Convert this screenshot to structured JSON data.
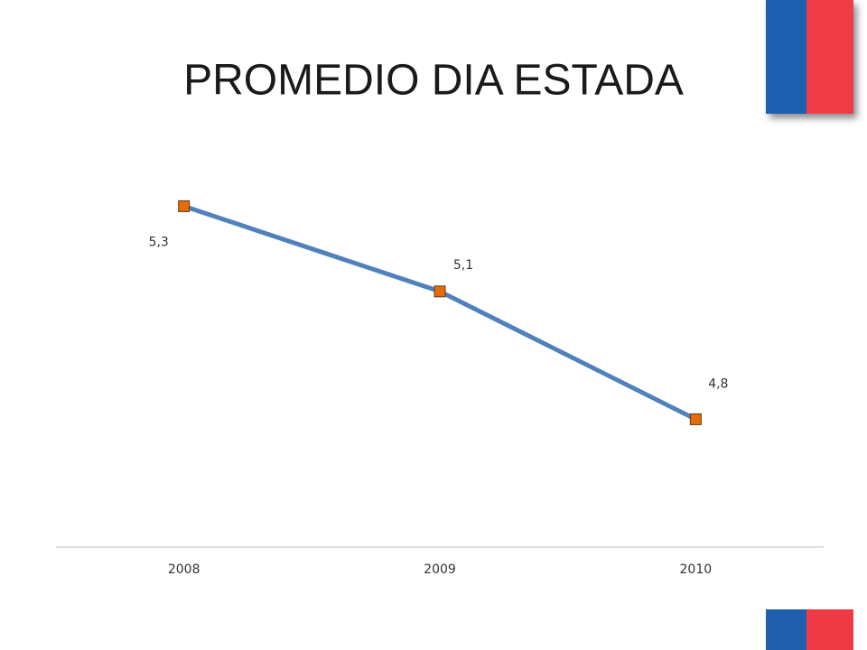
{
  "chart_data": {
    "type": "line",
    "title": "PROMEDIO DIA ESTADA",
    "categories": [
      "2008",
      "2009",
      "2010"
    ],
    "series": [
      {
        "name": "Promedio dia estada",
        "color": "#4f81bd",
        "marker_color": "#e46c0a",
        "values": [
          5.3,
          5.1,
          4.8
        ],
        "value_labels": [
          "5,3",
          "5,1",
          "4,8"
        ]
      }
    ],
    "ylim": [
      4.5,
      5.5
    ]
  }
}
